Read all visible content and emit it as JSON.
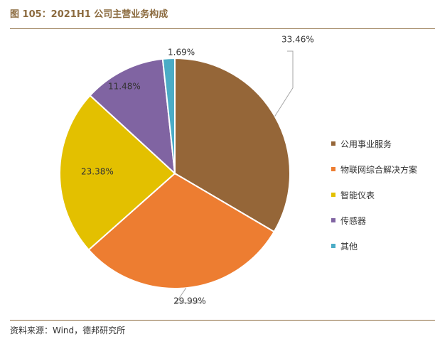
{
  "figure": {
    "title": "图 105：2021H1 公司主营业务构成",
    "source": "资料来源：Wind，德邦研究所"
  },
  "chart_data": {
    "type": "pie",
    "start_angle_deg": 0,
    "direction": "clockwise",
    "legend_position": "right",
    "slices": [
      {
        "label": "公用事业服务",
        "value": 33.46,
        "display": "33.46%",
        "color": "#956638"
      },
      {
        "label": "物联网综合解决方案",
        "value": 29.99,
        "display": "29.99%",
        "color": "#ed7d31"
      },
      {
        "label": "智能仪表",
        "value": 23.38,
        "display": "23.38%",
        "color": "#e3c000"
      },
      {
        "label": "传感器",
        "value": 11.48,
        "display": "11.48%",
        "color": "#8064a2"
      },
      {
        "label": "其他",
        "value": 1.69,
        "display": "1.69%",
        "color": "#4bacc6"
      }
    ]
  }
}
